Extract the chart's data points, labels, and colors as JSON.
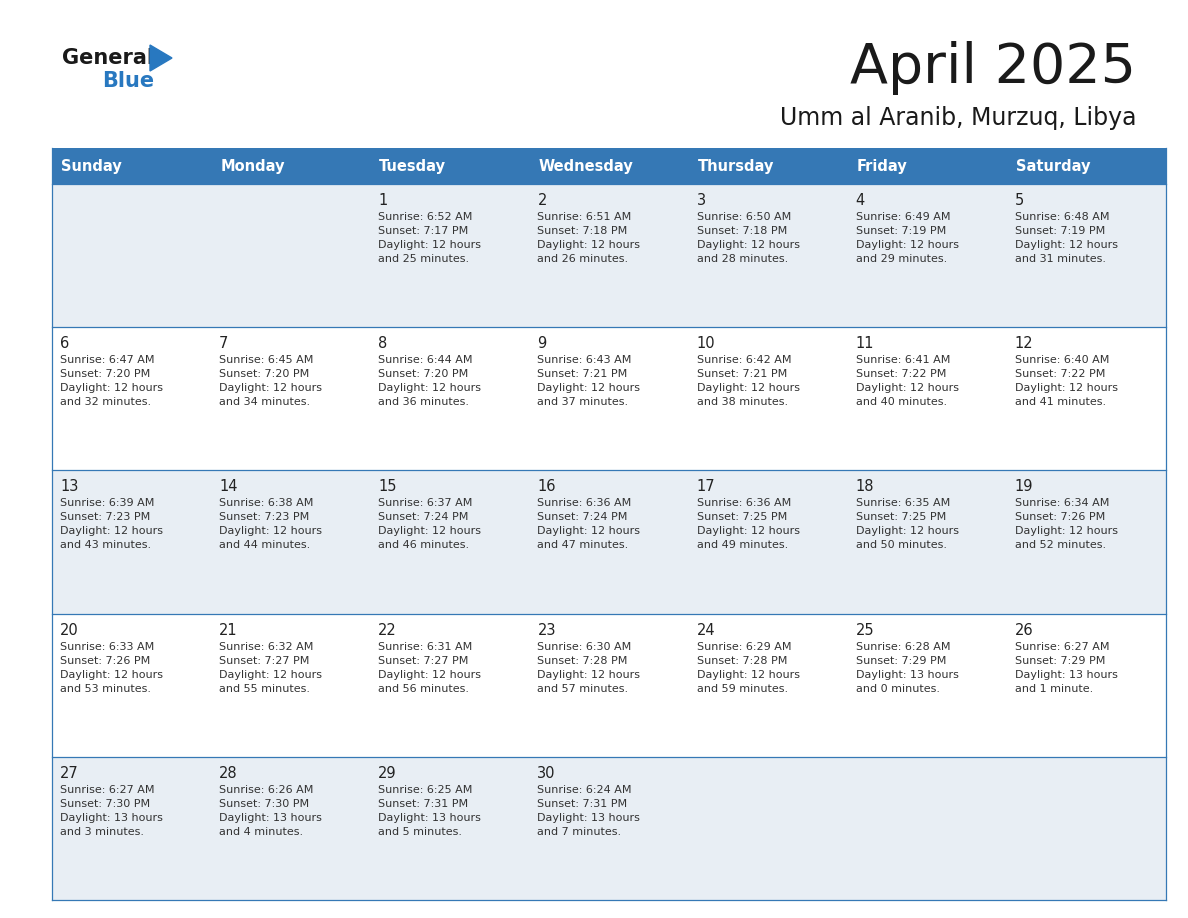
{
  "title": "April 2025",
  "subtitle": "Umm al Aranib, Murzuq, Libya",
  "header_bg": "#3578b5",
  "header_text": "#ffffff",
  "days_of_week": [
    "Sunday",
    "Monday",
    "Tuesday",
    "Wednesday",
    "Thursday",
    "Friday",
    "Saturday"
  ],
  "row_bg_even": "#e8eef4",
  "row_bg_odd": "#ffffff",
  "cell_border": "#3578b5",
  "day_number_color": "#222222",
  "info_text_color": "#333333",
  "title_color": "#1a1a1a",
  "logo_black": "#1a1a1a",
  "logo_blue": "#2878c0",
  "weeks": [
    [
      {
        "day": null
      },
      {
        "day": null
      },
      {
        "day": "1",
        "sunrise": "6:52 AM",
        "sunset": "7:17 PM",
        "daylight": "12 hours\nand 25 minutes."
      },
      {
        "day": "2",
        "sunrise": "6:51 AM",
        "sunset": "7:18 PM",
        "daylight": "12 hours\nand 26 minutes."
      },
      {
        "day": "3",
        "sunrise": "6:50 AM",
        "sunset": "7:18 PM",
        "daylight": "12 hours\nand 28 minutes."
      },
      {
        "day": "4",
        "sunrise": "6:49 AM",
        "sunset": "7:19 PM",
        "daylight": "12 hours\nand 29 minutes."
      },
      {
        "day": "5",
        "sunrise": "6:48 AM",
        "sunset": "7:19 PM",
        "daylight": "12 hours\nand 31 minutes."
      }
    ],
    [
      {
        "day": "6",
        "sunrise": "6:47 AM",
        "sunset": "7:20 PM",
        "daylight": "12 hours\nand 32 minutes."
      },
      {
        "day": "7",
        "sunrise": "6:45 AM",
        "sunset": "7:20 PM",
        "daylight": "12 hours\nand 34 minutes."
      },
      {
        "day": "8",
        "sunrise": "6:44 AM",
        "sunset": "7:20 PM",
        "daylight": "12 hours\nand 36 minutes."
      },
      {
        "day": "9",
        "sunrise": "6:43 AM",
        "sunset": "7:21 PM",
        "daylight": "12 hours\nand 37 minutes."
      },
      {
        "day": "10",
        "sunrise": "6:42 AM",
        "sunset": "7:21 PM",
        "daylight": "12 hours\nand 38 minutes."
      },
      {
        "day": "11",
        "sunrise": "6:41 AM",
        "sunset": "7:22 PM",
        "daylight": "12 hours\nand 40 minutes."
      },
      {
        "day": "12",
        "sunrise": "6:40 AM",
        "sunset": "7:22 PM",
        "daylight": "12 hours\nand 41 minutes."
      }
    ],
    [
      {
        "day": "13",
        "sunrise": "6:39 AM",
        "sunset": "7:23 PM",
        "daylight": "12 hours\nand 43 minutes."
      },
      {
        "day": "14",
        "sunrise": "6:38 AM",
        "sunset": "7:23 PM",
        "daylight": "12 hours\nand 44 minutes."
      },
      {
        "day": "15",
        "sunrise": "6:37 AM",
        "sunset": "7:24 PM",
        "daylight": "12 hours\nand 46 minutes."
      },
      {
        "day": "16",
        "sunrise": "6:36 AM",
        "sunset": "7:24 PM",
        "daylight": "12 hours\nand 47 minutes."
      },
      {
        "day": "17",
        "sunrise": "6:36 AM",
        "sunset": "7:25 PM",
        "daylight": "12 hours\nand 49 minutes."
      },
      {
        "day": "18",
        "sunrise": "6:35 AM",
        "sunset": "7:25 PM",
        "daylight": "12 hours\nand 50 minutes."
      },
      {
        "day": "19",
        "sunrise": "6:34 AM",
        "sunset": "7:26 PM",
        "daylight": "12 hours\nand 52 minutes."
      }
    ],
    [
      {
        "day": "20",
        "sunrise": "6:33 AM",
        "sunset": "7:26 PM",
        "daylight": "12 hours\nand 53 minutes."
      },
      {
        "day": "21",
        "sunrise": "6:32 AM",
        "sunset": "7:27 PM",
        "daylight": "12 hours\nand 55 minutes."
      },
      {
        "day": "22",
        "sunrise": "6:31 AM",
        "sunset": "7:27 PM",
        "daylight": "12 hours\nand 56 minutes."
      },
      {
        "day": "23",
        "sunrise": "6:30 AM",
        "sunset": "7:28 PM",
        "daylight": "12 hours\nand 57 minutes."
      },
      {
        "day": "24",
        "sunrise": "6:29 AM",
        "sunset": "7:28 PM",
        "daylight": "12 hours\nand 59 minutes."
      },
      {
        "day": "25",
        "sunrise": "6:28 AM",
        "sunset": "7:29 PM",
        "daylight": "13 hours\nand 0 minutes."
      },
      {
        "day": "26",
        "sunrise": "6:27 AM",
        "sunset": "7:29 PM",
        "daylight": "13 hours\nand 1 minute."
      }
    ],
    [
      {
        "day": "27",
        "sunrise": "6:27 AM",
        "sunset": "7:30 PM",
        "daylight": "13 hours\nand 3 minutes."
      },
      {
        "day": "28",
        "sunrise": "6:26 AM",
        "sunset": "7:30 PM",
        "daylight": "13 hours\nand 4 minutes."
      },
      {
        "day": "29",
        "sunrise": "6:25 AM",
        "sunset": "7:31 PM",
        "daylight": "13 hours\nand 5 minutes."
      },
      {
        "day": "30",
        "sunrise": "6:24 AM",
        "sunset": "7:31 PM",
        "daylight": "13 hours\nand 7 minutes."
      },
      {
        "day": null
      },
      {
        "day": null
      },
      {
        "day": null
      }
    ]
  ]
}
